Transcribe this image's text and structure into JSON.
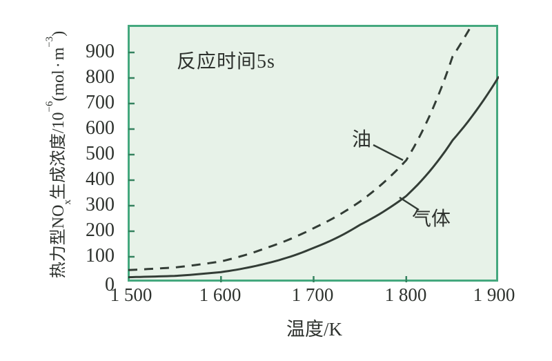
{
  "figure": {
    "annotation": "反应时间5s",
    "x_axis": {
      "title": "温度/K",
      "tick_labels": [
        "1 500",
        "1 600",
        "1 700",
        "1 800",
        "1 900"
      ]
    },
    "y_axis": {
      "tick_labels": [
        "900",
        "800",
        "700",
        "600",
        "500",
        "400",
        "300",
        "200",
        "100",
        "0"
      ],
      "label_p1": "热力型NO",
      "label_p1_sub": "x",
      "label_p2": "生成浓度/10",
      "label_p2_sup": "−6",
      "label_p3": "(mol",
      "label_dot": "·",
      "label_p4": "m",
      "label_p4_sup": "−3",
      "label_p5": ")"
    },
    "series_labels": {
      "oil": "油",
      "gas": "气体"
    }
  },
  "colors": {
    "plot_background": "#e7f2e8",
    "plot_border": "#44a87e",
    "curve": "#333d36",
    "tick": "#35825f",
    "text": "#2e322e"
  },
  "chart_data": {
    "type": "line",
    "title": "",
    "annotation": "反应时间5s",
    "xlabel": "温度/K",
    "ylabel": "热力型NOx生成浓度/10^-6 (mol·m^-3)",
    "xlim": [
      1500,
      1900
    ],
    "ylim": [
      0,
      1005
    ],
    "x_ticks": [
      1500,
      1600,
      1700,
      1800,
      1900
    ],
    "y_ticks": [
      0,
      100,
      200,
      300,
      400,
      500,
      600,
      700,
      800,
      900
    ],
    "grid": false,
    "legend_position": "inline-curve-labels",
    "series": [
      {
        "name": "油",
        "style": "dashed",
        "x": [
          1500,
          1550,
          1600,
          1650,
          1700,
          1750,
          1800,
          1850,
          1875
        ],
        "y": [
          48,
          58,
          82,
          136,
          212,
          316,
          478,
          884,
          1035
        ]
      },
      {
        "name": "气体",
        "style": "solid",
        "x": [
          1500,
          1550,
          1600,
          1650,
          1700,
          1750,
          1800,
          1850,
          1900
        ],
        "y": [
          20,
          25,
          40,
          75,
          135,
          225,
          338,
          556,
          806
        ]
      }
    ]
  }
}
